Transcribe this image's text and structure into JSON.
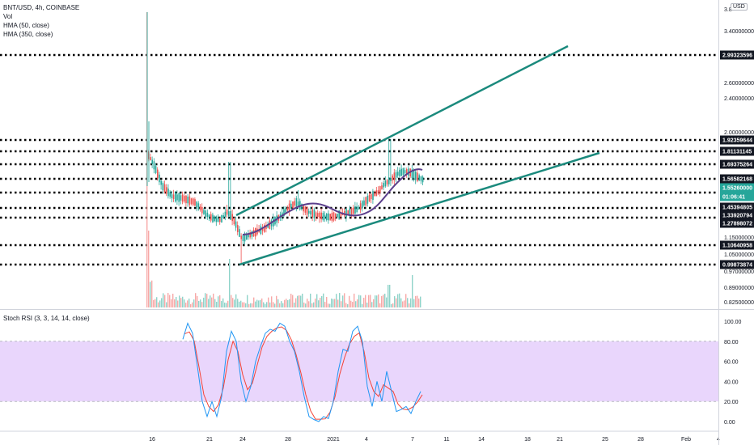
{
  "header": {
    "symbol": "BNT/USD, 4h, COINBASE",
    "vol": "Vol",
    "hma50": "HMA (50, close)",
    "hma350": "HMA (350, close)",
    "currency": "USD"
  },
  "price_axis": {
    "ticks": [
      "3.8",
      "3.40000000",
      "2.60000000",
      "2.40000000",
      "2.00000000",
      "1.15000000",
      "1.05000000",
      "0.97000000",
      "0.89000000",
      "0.82500000"
    ],
    "labels": [
      {
        "text": "2.99323596",
        "style": "dark"
      },
      {
        "text": "1.92359644",
        "style": "dark"
      },
      {
        "text": "1.81131145",
        "style": "dark"
      },
      {
        "text": "1.69375264",
        "style": "dark"
      },
      {
        "text": "1.56582168",
        "style": "dark"
      },
      {
        "text": "1.55260000",
        "style": "teal"
      },
      {
        "text": "01:06:41",
        "style": "teal"
      },
      {
        "text": "1.45394805",
        "style": "dark"
      },
      {
        "text": "1.33920794",
        "style": "dark"
      },
      {
        "text": "1.27898072",
        "style": "dark"
      },
      {
        "text": "1.10640958",
        "style": "dark"
      },
      {
        "text": "0.99873874",
        "style": "dark"
      }
    ]
  },
  "stoch_rsi": {
    "title": "Stoch RSI (3, 3, 14, 14, close)",
    "ticks": [
      "100.00",
      "80.00",
      "60.00",
      "40.00",
      "20.00",
      "0.00"
    ]
  },
  "time_axis": {
    "ticks": [
      "16",
      "21",
      "24",
      "28",
      "2021",
      "4",
      "7",
      "11",
      "14",
      "18",
      "21",
      "25",
      "28",
      "Feb",
      "4"
    ]
  },
  "colors": {
    "up": "#26a69a",
    "down": "#ef5350",
    "trendline": "#1b8a7d",
    "hma": "#5b3f8c",
    "rsi_band": "#e1c8fb",
    "rsi_k": "#2196f3",
    "rsi_d": "#f44336"
  }
}
